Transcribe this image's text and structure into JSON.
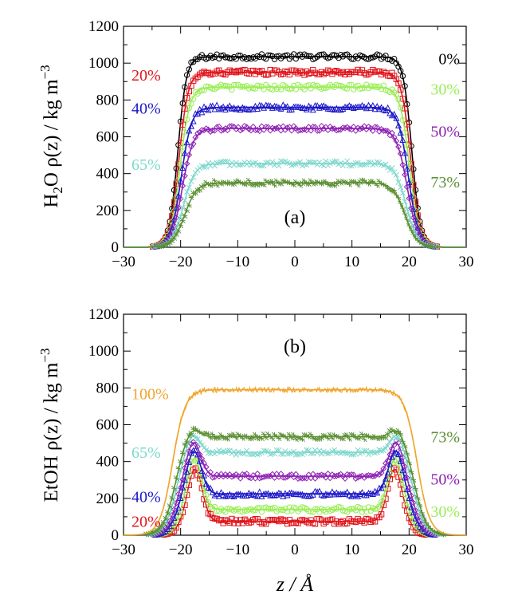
{
  "chart_data": [
    {
      "type": "line",
      "panel_label": "(a)",
      "ylabel": {
        "prefix": "H",
        "sub": "2",
        "main": "O ρ(z) / kg m",
        "sup": "−3"
      },
      "xlabel": "",
      "xlim": [
        -30,
        30
      ],
      "ylim": [
        0,
        1200
      ],
      "x_ticks": [
        "−30",
        "−20",
        "−10",
        "0",
        "10",
        "20",
        "30"
      ],
      "y_ticks": [
        "0",
        "200",
        "400",
        "600",
        "800",
        "1000",
        "1200"
      ],
      "series": [
        {
          "name": "0%",
          "color": "#000000",
          "marker": "circle",
          "plateau": 1035,
          "half_width": 20.5,
          "interface_width": 1.5,
          "surface_peak": 0
        },
        {
          "name": "20%",
          "color": "#e0151b",
          "marker": "square",
          "plateau": 950,
          "half_width": 20.3,
          "interface_width": 1.6,
          "surface_peak": 0
        },
        {
          "name": "30%",
          "color": "#99ee55",
          "marker": "circle",
          "plateau": 870,
          "half_width": 20.1,
          "interface_width": 1.7,
          "surface_peak": 0
        },
        {
          "name": "40%",
          "color": "#1c17c8",
          "marker": "triangle",
          "plateau": 760,
          "half_width": 19.9,
          "interface_width": 1.8,
          "surface_peak": 0
        },
        {
          "name": "50%",
          "color": "#8e22b3",
          "marker": "diamond",
          "plateau": 645,
          "half_width": 19.7,
          "interface_width": 1.9,
          "surface_peak": 0
        },
        {
          "name": "65%",
          "color": "#7fd8cc",
          "marker": "cross",
          "plateau": 455,
          "half_width": 19.5,
          "interface_width": 2.0,
          "surface_peak": 0
        },
        {
          "name": "73%",
          "color": "#5a8f32",
          "marker": "star",
          "plateau": 350,
          "half_width": 19.3,
          "interface_width": 2.1,
          "surface_peak": 0
        }
      ],
      "labels": [
        {
          "text": "0%",
          "series": "0%",
          "side": "right",
          "y": 1025
        },
        {
          "text": "20%",
          "series": "20%",
          "side": "left",
          "y": 935
        },
        {
          "text": "30%",
          "series": "30%",
          "side": "right",
          "y": 860
        },
        {
          "text": "40%",
          "series": "40%",
          "side": "left",
          "y": 755
        },
        {
          "text": "50%",
          "series": "50%",
          "side": "right",
          "y": 630
        },
        {
          "text": "65%",
          "series": "65%",
          "side": "left",
          "y": 450
        },
        {
          "text": "73%",
          "series": "73%",
          "side": "right",
          "y": 355
        }
      ]
    },
    {
      "type": "line",
      "panel_label": "(b)",
      "ylabel": {
        "prefix": "",
        "sub": "",
        "main": "EtOH ρ(z) / kg m",
        "sup": "−3"
      },
      "xlabel": "z / Å",
      "xlim": [
        -30,
        30
      ],
      "ylim": [
        0,
        1200
      ],
      "x_ticks": [
        "−30",
        "−20",
        "−10",
        "0",
        "10",
        "20",
        "30"
      ],
      "y_ticks": [
        "0",
        "200",
        "400",
        "600",
        "800",
        "1000",
        "1200"
      ],
      "series": [
        {
          "name": "20%",
          "color": "#e0151b",
          "marker": "square",
          "plateau": 75,
          "half_width": 20.5,
          "interface_width": 1.6,
          "surface_peak": 285
        },
        {
          "name": "30%",
          "color": "#99ee55",
          "marker": "circle",
          "plateau": 140,
          "half_width": 20.6,
          "interface_width": 1.7,
          "surface_peak": 280
        },
        {
          "name": "40%",
          "color": "#1c17c8",
          "marker": "triangle",
          "plateau": 225,
          "half_width": 20.7,
          "interface_width": 1.8,
          "surface_peak": 240
        },
        {
          "name": "50%",
          "color": "#8e22b3",
          "marker": "diamond",
          "plateau": 320,
          "half_width": 20.8,
          "interface_width": 1.9,
          "surface_peak": 195
        },
        {
          "name": "65%",
          "color": "#7fd8cc",
          "marker": "cross",
          "plateau": 450,
          "half_width": 20.9,
          "interface_width": 2.0,
          "surface_peak": 110
        },
        {
          "name": "73%",
          "color": "#5a8f32",
          "marker": "star",
          "plateau": 535,
          "half_width": 21.0,
          "interface_width": 2.1,
          "surface_peak": 55
        },
        {
          "name": "100%",
          "color": "#f0a52c",
          "marker": "none",
          "plateau": 790,
          "half_width": 21.4,
          "interface_width": 2.2,
          "surface_peak": 0
        }
      ],
      "labels": [
        {
          "text": "100%",
          "series": "100%",
          "side": "left",
          "y": 770
        },
        {
          "text": "65%",
          "series": "65%",
          "side": "left",
          "y": 450
        },
        {
          "text": "40%",
          "series": "40%",
          "side": "left",
          "y": 210
        },
        {
          "text": "20%",
          "series": "20%",
          "side": "left",
          "y": 75
        },
        {
          "text": "73%",
          "series": "73%",
          "side": "right",
          "y": 535
        },
        {
          "text": "50%",
          "series": "50%",
          "side": "right",
          "y": 305
        },
        {
          "text": "30%",
          "series": "30%",
          "side": "right",
          "y": 130
        }
      ]
    }
  ]
}
